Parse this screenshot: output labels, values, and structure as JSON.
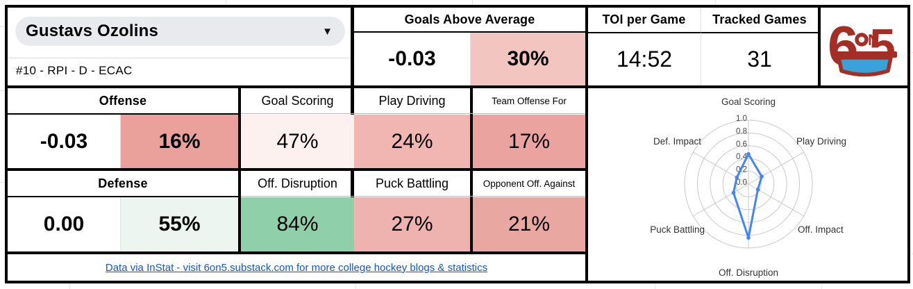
{
  "colors": {
    "link": "#1155cc",
    "logo_red": "#a52e24",
    "logo_blue": "#38a3d8",
    "radar_line": "#4285f4"
  },
  "player": {
    "name": "Gustavs Ozolins",
    "details": "#10 - RPI - D - ECAC"
  },
  "summary": {
    "goals_above_average": {
      "label": "Goals Above Average",
      "value": "-0.03",
      "percentile": "30%",
      "percentile_color": "#f3c5c1"
    },
    "toi_per_game": {
      "label": "TOI per Game",
      "value": "14:52"
    },
    "tracked_games": {
      "label": "Tracked Games",
      "value": "31"
    }
  },
  "offense": {
    "label": "Offense",
    "value": "-0.03",
    "percentile": "16%",
    "percentile_color": "#eba19b",
    "metrics": [
      {
        "label": "Goal Scoring",
        "value": "47%",
        "color": "#fdf1f0"
      },
      {
        "label": "Play Driving",
        "value": "24%",
        "color": "#f1b6b2"
      },
      {
        "label": "Team Offense For",
        "value": "17%",
        "color": "#eaa39e"
      }
    ]
  },
  "defense": {
    "label": "Defense",
    "value": "0.00",
    "percentile": "55%",
    "percentile_color": "#edf5f0",
    "metrics": [
      {
        "label": "Off. Disruption",
        "value": "84%",
        "color": "#8fd0aa"
      },
      {
        "label": "Puck Battling",
        "value": "27%",
        "color": "#efb3af"
      },
      {
        "label": "Opponent Off. Against",
        "value": "21%",
        "color": "#e9a7a2"
      }
    ]
  },
  "footer": {
    "link_text": "Data via InStat - visit 6on5.substack.com for more college hockey blogs & statistics"
  },
  "logo": {
    "six": "6",
    "on_n": "N",
    "five": "5"
  },
  "chart_data": {
    "type": "radar",
    "title": "",
    "categories": [
      "Goal Scoring",
      "Play Driving",
      "Off. Impact",
      "Off. Disruption",
      "Puck Battling",
      "Def. Impact"
    ],
    "values": [
      0.47,
      0.24,
      0.17,
      0.84,
      0.27,
      0.21
    ],
    "ticks": [
      0.0,
      0.2,
      0.4,
      0.6,
      0.8,
      1.0
    ],
    "rlim": [
      0,
      1
    ],
    "grid": "circular",
    "line_color": "#4285f4",
    "grid_color": "#c9c9c9",
    "tick_label_color": "#444444",
    "axis_label_color": "#333333"
  }
}
